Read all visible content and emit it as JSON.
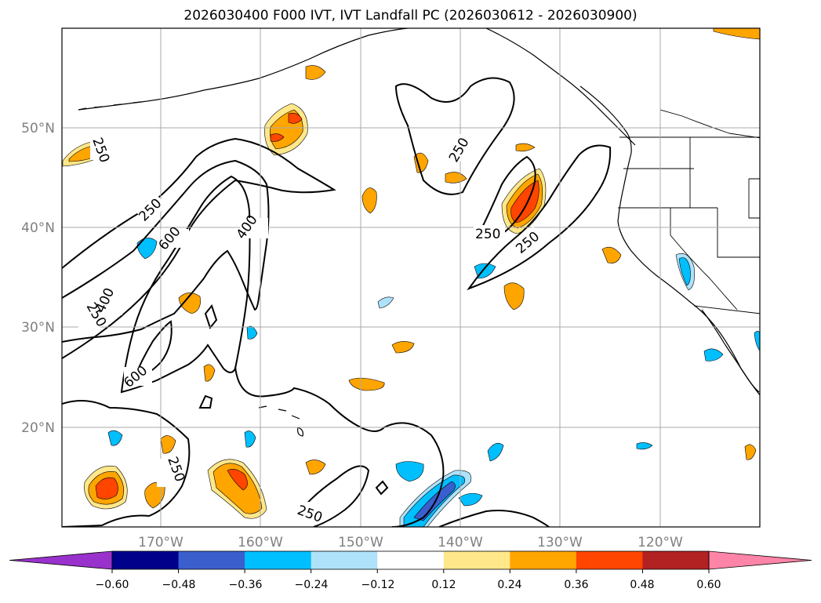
{
  "title": "2026030400 F000 IVT, IVT Landfall PC (2026030612 - 2026030900)",
  "map": {
    "lon_range": [
      -180,
      -110
    ],
    "lat_range": [
      10,
      60
    ],
    "grid_lons": [
      -170,
      -160,
      -150,
      -140,
      -130,
      -120
    ],
    "grid_lats": [
      20,
      30,
      40,
      50
    ],
    "lon_labels": [
      "170°W",
      "160°W",
      "150°W",
      "140°W",
      "130°W",
      "120°W"
    ],
    "lat_labels": [
      "20°N",
      "30°N",
      "40°N",
      "50°N"
    ],
    "contour_labels": [
      "250",
      "250",
      "250",
      "250",
      "250",
      "250",
      "250",
      "250",
      "400",
      "400",
      "600",
      "600"
    ]
  },
  "colorbar": {
    "ticks": [
      "−0.60",
      "−0.48",
      "−0.36",
      "−0.24",
      "−0.12",
      "0.12",
      "0.24",
      "0.36",
      "0.48",
      "0.60"
    ],
    "levels": [
      -0.6,
      -0.48,
      -0.36,
      -0.24,
      -0.12,
      0.12,
      0.24,
      0.36,
      0.48,
      0.6
    ],
    "colors": [
      "#9932cc",
      "#00008b",
      "#3a5fcd",
      "#00bfff",
      "#aee2fa",
      "#ffffff",
      "#ffe78a",
      "#ffa500",
      "#ff4500",
      "#b22222",
      "#ff85a8"
    ]
  }
}
